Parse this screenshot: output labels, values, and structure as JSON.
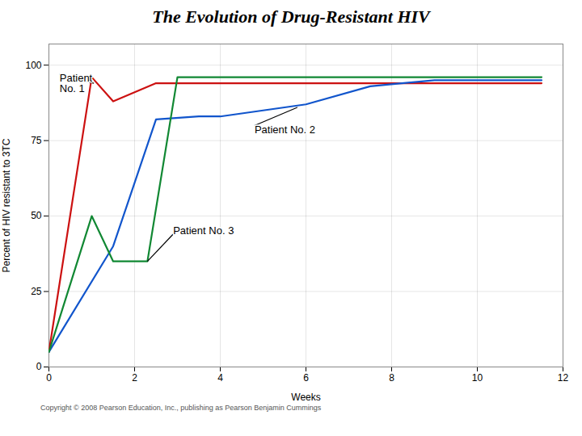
{
  "chart_data": {
    "type": "line",
    "title": "The Evolution of Drug-Resistant HIV",
    "xlabel": "Weeks",
    "ylabel": "Percent of HIV resistant to 3TC",
    "xlim": [
      0,
      12
    ],
    "ylim": [
      0,
      107
    ],
    "xticks": [
      0,
      2,
      4,
      6,
      8,
      10,
      12
    ],
    "yticks": [
      0,
      25,
      50,
      75,
      100
    ],
    "grid": true,
    "series": [
      {
        "color": "#cc1111",
        "x": [
          0,
          1.0,
          1.5,
          2.5,
          3.5,
          5,
          7,
          9,
          11.5
        ],
        "values": [
          5,
          96,
          88,
          94,
          94,
          94,
          94,
          94,
          94
        ]
      },
      {
        "color": "#1155cc",
        "x": [
          0,
          1.5,
          2.5,
          3.5,
          4.0,
          6.0,
          7.5,
          9,
          11.5
        ],
        "values": [
          5,
          40,
          82,
          83,
          83,
          87,
          93,
          95,
          95
        ]
      },
      {
        "color": "#118833",
        "x": [
          0,
          1.0,
          1.5,
          2.3,
          3.0,
          3.5,
          5,
          7,
          9,
          11.5
        ],
        "values": [
          5,
          50,
          35,
          35,
          96,
          96,
          96,
          96,
          96,
          96
        ]
      }
    ],
    "annotations": [
      {
        "text": "Patient\nNo. 1",
        "xy": [
          1.05,
          94
        ],
        "xytext": [
          0.25,
          97
        ]
      },
      {
        "text": "Patient No. 2",
        "xy": [
          5.8,
          86
        ],
        "xytext": [
          4.8,
          80
        ]
      },
      {
        "text": "Patient No. 3",
        "xy": [
          2.3,
          35
        ],
        "xytext": [
          2.9,
          44
        ]
      }
    ],
    "caption": "Copyright © 2008 Pearson Education, Inc., publishing as Pearson Benjamin Cummings"
  }
}
